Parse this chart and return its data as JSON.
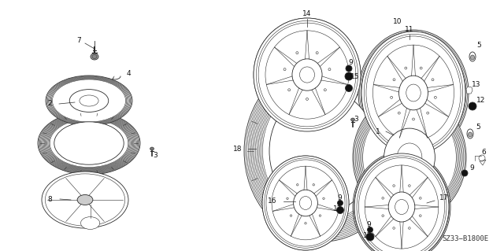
{
  "background_color": "#ffffff",
  "diagram_code": "SZ33−B1800E",
  "figsize": [
    6.4,
    3.19
  ],
  "dpi": 100,
  "line_color": "#2a2a2a",
  "label_fontsize": 6.5,
  "diagram_code_fontsize": 6.5
}
